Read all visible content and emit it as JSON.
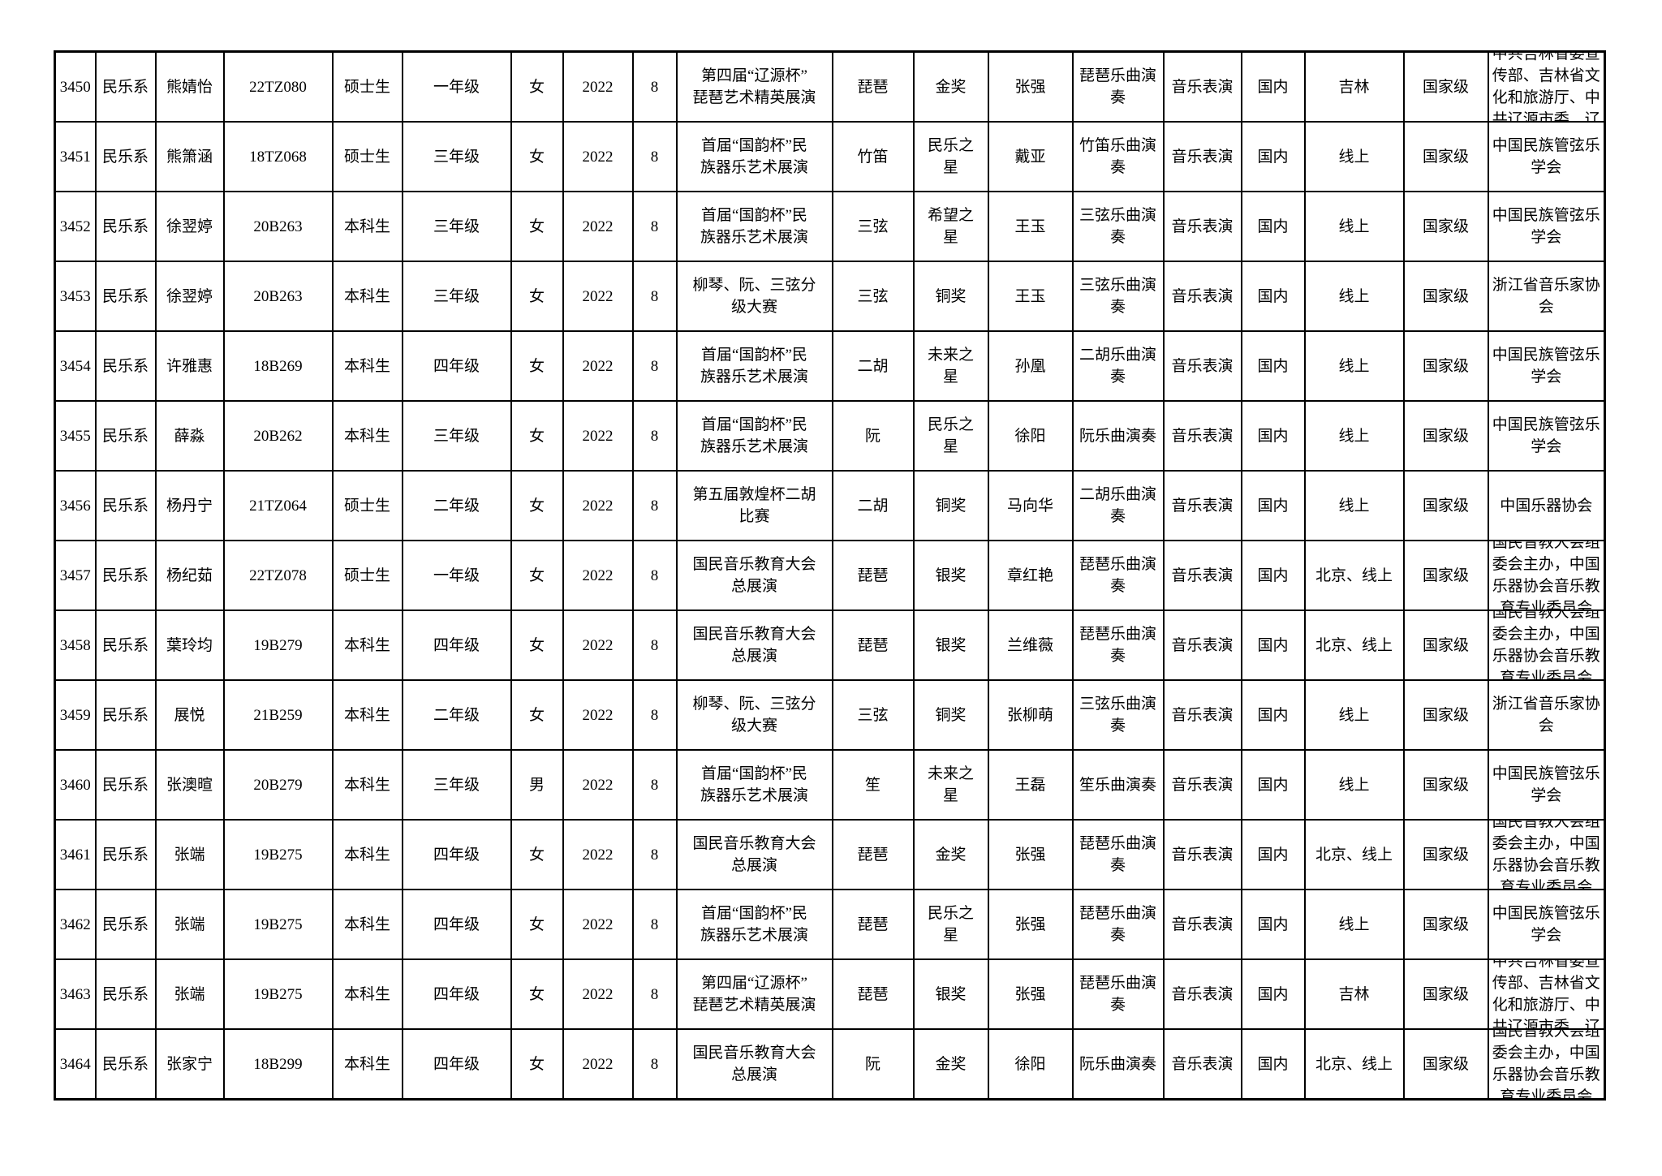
{
  "page": {
    "background_color": "#ffffff",
    "border_color": "#000000",
    "text_color": "#000000"
  },
  "table": {
    "columns": [
      "id",
      "dept",
      "name",
      "student_id",
      "degree",
      "grade",
      "gender",
      "year",
      "month",
      "award_name",
      "instrument",
      "prize",
      "teacher",
      "piece",
      "perf_type",
      "scope",
      "location",
      "level",
      "org"
    ],
    "rows": [
      {
        "id": "3450",
        "dept": "民乐系",
        "name": "熊婧怡",
        "student_id": "22TZ080",
        "degree": "硕士生",
        "grade": "一年级",
        "gender": "女",
        "year": "2022",
        "month": "8",
        "award_name": "第四届“辽源杯”\n琵琶艺术精英展演",
        "instrument": "琵琶",
        "prize": "金奖",
        "teacher": "张强",
        "piece": "琵琶乐曲演\n奏",
        "perf_type": "音乐表演",
        "scope": "国内",
        "location": "吉林",
        "level": "国家级",
        "org": "中共吉林省委宣\n传部、吉林省文\n化和旅游厅、中\n共辽源市委、辽"
      },
      {
        "id": "3451",
        "dept": "民乐系",
        "name": "熊箫涵",
        "student_id": "18TZ068",
        "degree": "硕士生",
        "grade": "三年级",
        "gender": "女",
        "year": "2022",
        "month": "8",
        "award_name": "首届“国韵杯”民\n族器乐艺术展演",
        "instrument": "竹笛",
        "prize": "民乐之\n星",
        "teacher": "戴亚",
        "piece": "竹笛乐曲演\n奏",
        "perf_type": "音乐表演",
        "scope": "国内",
        "location": "线上",
        "level": "国家级",
        "org": "中国民族管弦乐\n学会"
      },
      {
        "id": "3452",
        "dept": "民乐系",
        "name": "徐翌婷",
        "student_id": "20B263",
        "degree": "本科生",
        "grade": "三年级",
        "gender": "女",
        "year": "2022",
        "month": "8",
        "award_name": "首届“国韵杯”民\n族器乐艺术展演",
        "instrument": "三弦",
        "prize": "希望之\n星",
        "teacher": "王玉",
        "piece": "三弦乐曲演\n奏",
        "perf_type": "音乐表演",
        "scope": "国内",
        "location": "线上",
        "level": "国家级",
        "org": "中国民族管弦乐\n学会"
      },
      {
        "id": "3453",
        "dept": "民乐系",
        "name": "徐翌婷",
        "student_id": "20B263",
        "degree": "本科生",
        "grade": "三年级",
        "gender": "女",
        "year": "2022",
        "month": "8",
        "award_name": "柳琴、阮、三弦分\n级大赛",
        "instrument": "三弦",
        "prize": "铜奖",
        "teacher": "王玉",
        "piece": "三弦乐曲演\n奏",
        "perf_type": "音乐表演",
        "scope": "国内",
        "location": "线上",
        "level": "国家级",
        "org": "浙江省音乐家协\n会"
      },
      {
        "id": "3454",
        "dept": "民乐系",
        "name": "许雅惠",
        "student_id": "18B269",
        "degree": "本科生",
        "grade": "四年级",
        "gender": "女",
        "year": "2022",
        "month": "8",
        "award_name": "首届“国韵杯”民\n族器乐艺术展演",
        "instrument": "二胡",
        "prize": "未来之\n星",
        "teacher": "孙凰",
        "piece": "二胡乐曲演\n奏",
        "perf_type": "音乐表演",
        "scope": "国内",
        "location": "线上",
        "level": "国家级",
        "org": "中国民族管弦乐\n学会"
      },
      {
        "id": "3455",
        "dept": "民乐系",
        "name": "薛淼",
        "student_id": "20B262",
        "degree": "本科生",
        "grade": "三年级",
        "gender": "女",
        "year": "2022",
        "month": "8",
        "award_name": "首届“国韵杯”民\n族器乐艺术展演",
        "instrument": "阮",
        "prize": "民乐之\n星",
        "teacher": "徐阳",
        "piece": "阮乐曲演奏",
        "perf_type": "音乐表演",
        "scope": "国内",
        "location": "线上",
        "level": "国家级",
        "org": "中国民族管弦乐\n学会"
      },
      {
        "id": "3456",
        "dept": "民乐系",
        "name": "杨丹宁",
        "student_id": "21TZ064",
        "degree": "硕士生",
        "grade": "二年级",
        "gender": "女",
        "year": "2022",
        "month": "8",
        "award_name": "第五届敦煌杯二胡\n比赛",
        "instrument": "二胡",
        "prize": "铜奖",
        "teacher": "马向华",
        "piece": "二胡乐曲演\n奏",
        "perf_type": "音乐表演",
        "scope": "国内",
        "location": "线上",
        "level": "国家级",
        "org": "中国乐器协会"
      },
      {
        "id": "3457",
        "dept": "民乐系",
        "name": "杨纪茹",
        "student_id": "22TZ078",
        "degree": "硕士生",
        "grade": "一年级",
        "gender": "女",
        "year": "2022",
        "month": "8",
        "award_name": "国民音乐教育大会\n总展演",
        "instrument": "琵琶",
        "prize": "银奖",
        "teacher": "章红艳",
        "piece": "琵琶乐曲演\n奏",
        "perf_type": "音乐表演",
        "scope": "国内",
        "location": "北京、线上",
        "level": "国家级",
        "org": "国民音教大会组\n委会主办，中国\n乐器协会音乐教\n育专业委员会"
      },
      {
        "id": "3458",
        "dept": "民乐系",
        "name": "葉玲均",
        "student_id": "19B279",
        "degree": "本科生",
        "grade": "四年级",
        "gender": "女",
        "year": "2022",
        "month": "8",
        "award_name": "国民音乐教育大会\n总展演",
        "instrument": "琵琶",
        "prize": "银奖",
        "teacher": "兰维薇",
        "piece": "琵琶乐曲演\n奏",
        "perf_type": "音乐表演",
        "scope": "国内",
        "location": "北京、线上",
        "level": "国家级",
        "org": "国民音教大会组\n委会主办，中国\n乐器协会音乐教\n育专业委员会"
      },
      {
        "id": "3459",
        "dept": "民乐系",
        "name": "展悦",
        "student_id": "21B259",
        "degree": "本科生",
        "grade": "二年级",
        "gender": "女",
        "year": "2022",
        "month": "8",
        "award_name": "柳琴、阮、三弦分\n级大赛",
        "instrument": "三弦",
        "prize": "铜奖",
        "teacher": "张柳萌",
        "piece": "三弦乐曲演\n奏",
        "perf_type": "音乐表演",
        "scope": "国内",
        "location": "线上",
        "level": "国家级",
        "org": "浙江省音乐家协\n会"
      },
      {
        "id": "3460",
        "dept": "民乐系",
        "name": "张澳暄",
        "student_id": "20B279",
        "degree": "本科生",
        "grade": "三年级",
        "gender": "男",
        "year": "2022",
        "month": "8",
        "award_name": "首届“国韵杯”民\n族器乐艺术展演",
        "instrument": "笙",
        "prize": "未来之\n星",
        "teacher": "王磊",
        "piece": "笙乐曲演奏",
        "perf_type": "音乐表演",
        "scope": "国内",
        "location": "线上",
        "level": "国家级",
        "org": "中国民族管弦乐\n学会"
      },
      {
        "id": "3461",
        "dept": "民乐系",
        "name": "张端",
        "student_id": "19B275",
        "degree": "本科生",
        "grade": "四年级",
        "gender": "女",
        "year": "2022",
        "month": "8",
        "award_name": "国民音乐教育大会\n总展演",
        "instrument": "琵琶",
        "prize": "金奖",
        "teacher": "张强",
        "piece": "琵琶乐曲演\n奏",
        "perf_type": "音乐表演",
        "scope": "国内",
        "location": "北京、线上",
        "level": "国家级",
        "org": "国民音教大会组\n委会主办，中国\n乐器协会音乐教\n育专业委员会"
      },
      {
        "id": "3462",
        "dept": "民乐系",
        "name": "张端",
        "student_id": "19B275",
        "degree": "本科生",
        "grade": "四年级",
        "gender": "女",
        "year": "2022",
        "month": "8",
        "award_name": "首届“国韵杯”民\n族器乐艺术展演",
        "instrument": "琵琶",
        "prize": "民乐之\n星",
        "teacher": "张强",
        "piece": "琵琶乐曲演\n奏",
        "perf_type": "音乐表演",
        "scope": "国内",
        "location": "线上",
        "level": "国家级",
        "org": "中国民族管弦乐\n学会"
      },
      {
        "id": "3463",
        "dept": "民乐系",
        "name": "张端",
        "student_id": "19B275",
        "degree": "本科生",
        "grade": "四年级",
        "gender": "女",
        "year": "2022",
        "month": "8",
        "award_name": "第四届“辽源杯”\n琵琶艺术精英展演",
        "instrument": "琵琶",
        "prize": "银奖",
        "teacher": "张强",
        "piece": "琵琶乐曲演\n奏",
        "perf_type": "音乐表演",
        "scope": "国内",
        "location": "吉林",
        "level": "国家级",
        "org": "中共吉林省委宣\n传部、吉林省文\n化和旅游厅、中\n共辽源市委、辽"
      },
      {
        "id": "3464",
        "dept": "民乐系",
        "name": "张家宁",
        "student_id": "18B299",
        "degree": "本科生",
        "grade": "四年级",
        "gender": "女",
        "year": "2022",
        "month": "8",
        "award_name": "国民音乐教育大会\n总展演",
        "instrument": "阮",
        "prize": "金奖",
        "teacher": "徐阳",
        "piece": "阮乐曲演奏",
        "perf_type": "音乐表演",
        "scope": "国内",
        "location": "北京、线上",
        "level": "国家级",
        "org": "国民音教大会组\n委会主办，中国\n乐器协会音乐教\n育专业委员会"
      }
    ]
  }
}
